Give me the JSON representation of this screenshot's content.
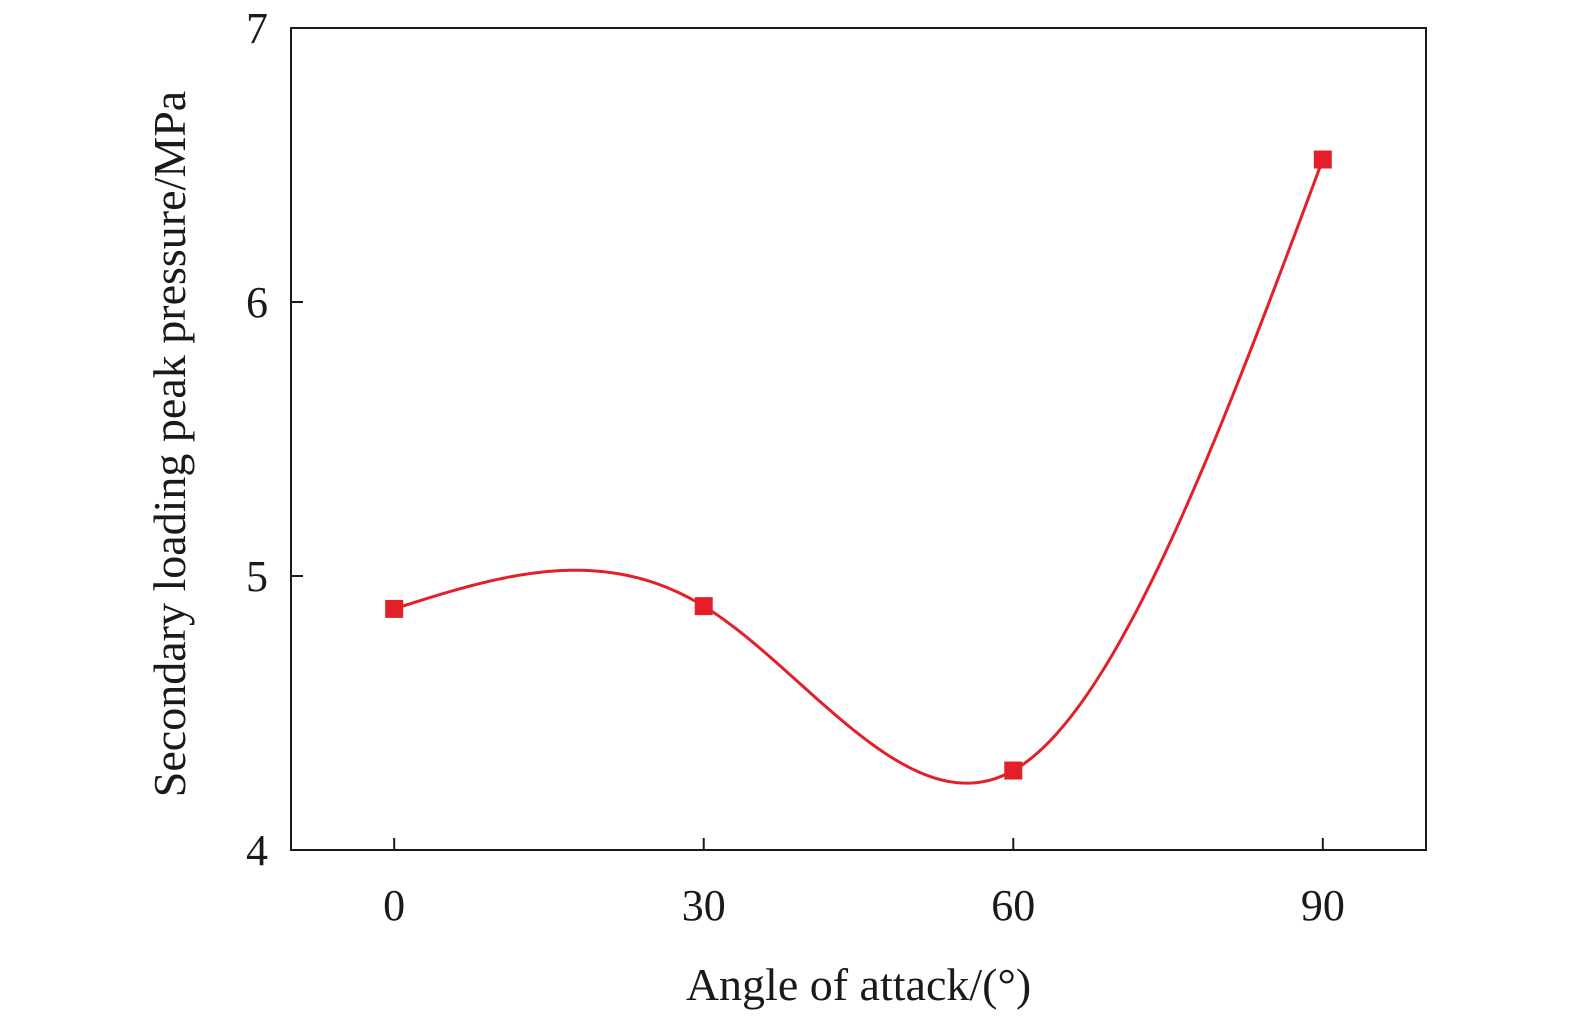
{
  "chart_data": {
    "type": "line",
    "title": "",
    "xlabel": "Angle of attack/(°)",
    "ylabel": "Secondary loading peak pressure/MPa",
    "x_ticks": [
      0,
      30,
      60,
      90
    ],
    "y_ticks": [
      4,
      5,
      6,
      7
    ],
    "xlim": [
      -10,
      100
    ],
    "ylim": [
      4,
      7
    ],
    "grid": false,
    "legend": "none",
    "smooth": true,
    "series": [
      {
        "x": [
          0,
          30,
          60,
          90
        ],
        "y": [
          4.88,
          4.89,
          4.29,
          6.52
        ],
        "color": "#e3202a",
        "marker": "square"
      }
    ]
  }
}
